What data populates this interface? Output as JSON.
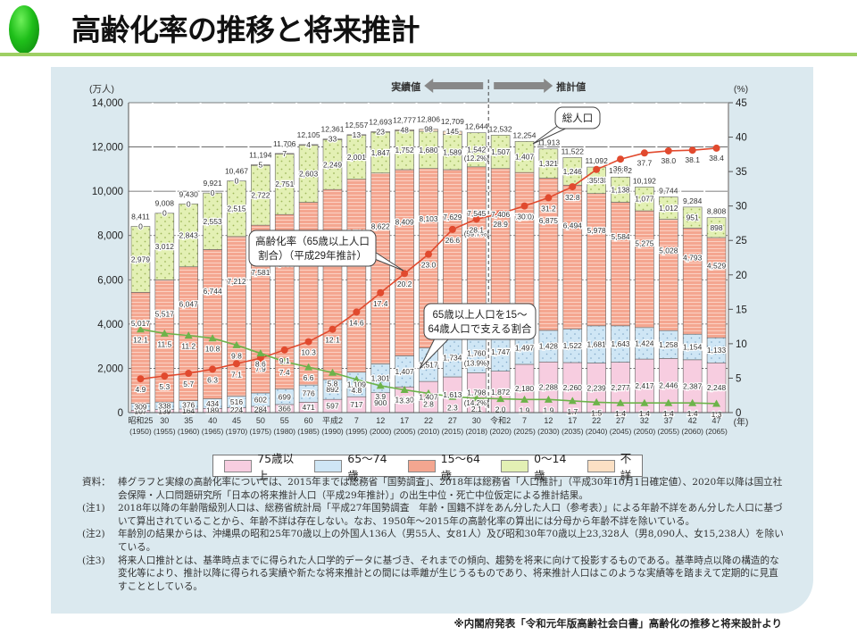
{
  "page": {
    "title": "高齢化率の推移と将来推計",
    "source": "※内閣府発表「令和元年版高齢社会白書」高齢化の推移と将来設計より"
  },
  "chart_data": {
    "type": "bar",
    "stacked": true,
    "title": "高齢化率の推移と将来推計",
    "ylabel_left": "(万人)",
    "ylabel_right": "(%)",
    "xlabel": "(年)",
    "ylim_left": [
      0,
      14000
    ],
    "ylim_right": [
      0,
      45
    ],
    "yticks_left": [
      "0",
      "2,000",
      "4,000",
      "6,000",
      "8,000",
      "10,000",
      "12,000",
      "14,000"
    ],
    "yticks_right": [
      "0",
      "5",
      "10",
      "15",
      "20",
      "25",
      "30",
      "35",
      "40",
      "45"
    ],
    "grid": true,
    "categories": [
      {
        "era": "昭和25",
        "year": "(1950)"
      },
      {
        "era": "30",
        "year": "(1955)"
      },
      {
        "era": "35",
        "year": "(1960)"
      },
      {
        "era": "40",
        "year": "(1965)"
      },
      {
        "era": "45",
        "year": "(1970)"
      },
      {
        "era": "50",
        "year": "(1975)"
      },
      {
        "era": "55",
        "year": "(1980)"
      },
      {
        "era": "60",
        "year": "(1985)"
      },
      {
        "era": "平成2",
        "year": "(1990)"
      },
      {
        "era": "7",
        "year": "(1995)"
      },
      {
        "era": "12",
        "year": "(2000)"
      },
      {
        "era": "17",
        "year": "(2005)"
      },
      {
        "era": "22",
        "year": "(2010)"
      },
      {
        "era": "27",
        "year": "(2015)"
      },
      {
        "era": "30",
        "year": "(2018)"
      },
      {
        "era": "令和2",
        "year": "(2020)"
      },
      {
        "era": "7",
        "year": "(2025)"
      },
      {
        "era": "12",
        "year": "(2030)"
      },
      {
        "era": "17",
        "year": "(2035)"
      },
      {
        "era": "22",
        "year": "(2040)"
      },
      {
        "era": "27",
        "year": "(2045)"
      },
      {
        "era": "32",
        "year": "(2050)"
      },
      {
        "era": "37",
        "year": "(2055)"
      },
      {
        "era": "42",
        "year": "(2060)"
      },
      {
        "era": "47",
        "year": "(2065)"
      }
    ],
    "series": [
      {
        "name": "75歳以上",
        "color": "#f7cde0",
        "values": [
          107,
          139,
          164,
          189,
          224,
          284,
          366,
          471,
          597,
          717,
          900,
          1160,
          1407,
          1613,
          1798,
          1872,
          2180,
          2288,
          2260,
          2239,
          2277,
          2417,
          2446,
          2387,
          2248
        ]
      },
      {
        "name": "65～74歳",
        "color": "#cfe6f5",
        "values": [
          309,
          338,
          376,
          434,
          516,
          602,
          699,
          776,
          892,
          1109,
          1301,
          1407,
          1517,
          1734,
          1760,
          1747,
          1497,
          1428,
          1522,
          1681,
          1643,
          1424,
          1258,
          1154,
          1133
        ]
      },
      {
        "name": "15～64歳",
        "color": "#f4a690",
        "values": [
          5017,
          5517,
          6047,
          6744,
          7212,
          7581,
          7883,
          8251,
          8590,
          8716,
          8622,
          8409,
          8103,
          7629,
          7545,
          7406,
          7170,
          6875,
          6494,
          5978,
          5584,
          5275,
          5028,
          4793,
          4529
        ]
      },
      {
        "name": "0～14歳",
        "color": "#e3f0b4",
        "values": [
          2979,
          3012,
          2843,
          2553,
          2515,
          2722,
          2751,
          2603,
          2249,
          2001,
          1847,
          1752,
          1680,
          1589,
          1542,
          1507,
          1407,
          1321,
          1246,
          1194,
          1138,
          1077,
          1012,
          951,
          898
        ]
      },
      {
        "name": "不詳",
        "color": "#fbe0c4",
        "values": [
          0,
          0,
          0,
          0,
          0,
          5,
          7,
          4,
          33,
          13,
          23,
          48,
          98,
          145,
          null,
          null,
          null,
          null,
          null,
          null,
          null,
          null,
          null,
          null,
          null
        ]
      }
    ],
    "totals": [
      8411,
      9008,
      9430,
      9921,
      10467,
      11194,
      11706,
      12105,
      12361,
      12557,
      12693,
      12777,
      12806,
      12709,
      12644,
      12532,
      12254,
      11913,
      11522,
      11092,
      10642,
      10192,
      9744,
      9284,
      8808
    ],
    "lines": [
      {
        "name": "高齢化率(65歳以上人口割合)(平成29年推計)",
        "axis": "right",
        "color": "#e14a2e",
        "marker": "circle",
        "values": [
          4.9,
          5.3,
          5.7,
          6.3,
          7.1,
          7.9,
          9.1,
          10.3,
          12.1,
          14.6,
          17.4,
          20.2,
          23.0,
          26.6,
          28.1,
          28.9,
          30.0,
          31.2,
          32.8,
          35.3,
          36.8,
          37.7,
          38.0,
          38.1,
          38.4
        ]
      },
      {
        "name": "65歳以上人口を15～64歳人口で支える割合",
        "axis": "right",
        "color": "#6db34a",
        "marker": "triangle",
        "values": [
          12.1,
          11.5,
          11.2,
          10.8,
          9.8,
          8.6,
          7.4,
          6.6,
          5.8,
          4.8,
          3.9,
          3.3,
          2.8,
          2.3,
          2.1,
          2.0,
          1.9,
          1.9,
          1.7,
          1.5,
          1.4,
          1.4,
          1.4,
          1.4,
          1.3
        ],
        "labels": [
          "12.1",
          "11.5",
          "11.2",
          "10.8",
          "9.8",
          "8.6",
          "7.4",
          "6.6",
          "5.8",
          "4.8",
          "3.9",
          "3.3",
          "2.8",
          "2.3",
          "2.1",
          "2.0",
          "1.9",
          "1.9",
          "1.7",
          "1:5",
          "1:4",
          "1:4",
          "1:4",
          "1:4",
          "1:3"
        ]
      }
    ],
    "annotations": {
      "actual_label": "実績値",
      "projection_label": "推計値",
      "total_callout": "総人口",
      "aging_rate_callout": "高齢化率（65歳以上人口割合）（平成29年推計）",
      "support_ratio_callout": "65歳以上人口を15～64歳人口で支える割合",
      "pct_2018_working": "(59.7%)",
      "pct_2018_young": "(12.2%)",
      "pct_2018_65_74": "(13.9%)",
      "pct_2018_75plus": "(14.2%)"
    },
    "legend": {
      "placement": "bottom",
      "items": [
        "75歳以上",
        "65～74歳",
        "15～64歳",
        "0～14歳",
        "不詳"
      ]
    }
  },
  "notes": [
    {
      "label": "資料：",
      "text": "棒グラフと実線の高齢化率については、2015年までは総務省「国勢調査」、2018年は総務省「人口推計」（平成30年10月1日確定値）、2020年以降は国立社会保障・人口問題研究所「日本の将来推計人口（平成29年推計）」の出生中位・死亡中位仮定による推計結果。"
    },
    {
      "label": "(注1)",
      "text": "2018年以降の年齢階級別人口は、総務省統計局「平成27年国勢調査　年齢・国籍不詳をあん分した人口（参考表）」による年齢不詳をあん分した人口に基づいて算出されていることから、年齢不詳は存在しない。なお、1950年～2015年の高齢化率の算出には分母から年齢不詳を除いている。"
    },
    {
      "label": "(注2)",
      "text": "年齢別の結果からは、沖縄県の昭和25年70歳以上の外国人136人（男55人、女81人）及び昭和30年70歳以上23,328人（男8,090人、女15,238人）を除いている。"
    },
    {
      "label": "(注3)",
      "text": "将来人口推計とは、基準時点までに得られた人口学的データに基づき、それまでの傾向、趨勢を将来に向けて投影するものである。基準時点以降の構造的な変化等により、推計以降に得られる実績や新たな将来推計との間には乖離が生じうるものであり、将来推計人口はこのような実績等を踏まえて定期的に見直すこととしている。"
    }
  ]
}
